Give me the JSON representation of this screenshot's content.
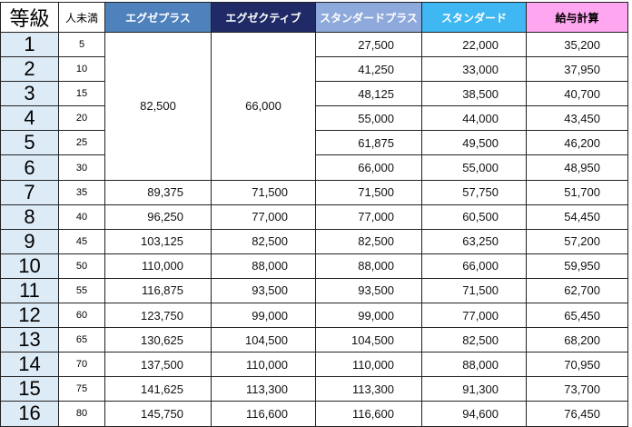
{
  "headers": {
    "rank": "等級",
    "min_people": "人未満",
    "egze_plus": "エグゼプラス",
    "egze_active": "エグゼクティブ",
    "standard_plus": "スタンダードプラス",
    "standard": "スタンダード",
    "salary": "給与計算"
  },
  "merged": {
    "egze_plus": "82,500",
    "egze_active": "66,000"
  },
  "rows": [
    {
      "rank": "1",
      "min": "5",
      "standard_plus": "27,500",
      "standard": "22,000",
      "salary": "35,200"
    },
    {
      "rank": "2",
      "min": "10",
      "standard_plus": "41,250",
      "standard": "33,000",
      "salary": "37,950"
    },
    {
      "rank": "3",
      "min": "15",
      "standard_plus": "48,125",
      "standard": "38,500",
      "salary": "40,700"
    },
    {
      "rank": "4",
      "min": "20",
      "standard_plus": "55,000",
      "standard": "44,000",
      "salary": "43,450"
    },
    {
      "rank": "5",
      "min": "25",
      "standard_plus": "61,875",
      "standard": "49,500",
      "salary": "46,200"
    },
    {
      "rank": "6",
      "min": "30",
      "standard_plus": "66,000",
      "standard": "55,000",
      "salary": "48,950"
    },
    {
      "rank": "7",
      "min": "35",
      "egze_plus": "89,375",
      "egze_active": "71,500",
      "standard_plus": "71,500",
      "standard": "57,750",
      "salary": "51,700"
    },
    {
      "rank": "8",
      "min": "40",
      "egze_plus": "96,250",
      "egze_active": "77,000",
      "standard_plus": "77,000",
      "standard": "60,500",
      "salary": "54,450"
    },
    {
      "rank": "9",
      "min": "45",
      "egze_plus": "103,125",
      "egze_active": "82,500",
      "standard_plus": "82,500",
      "standard": "63,250",
      "salary": "57,200"
    },
    {
      "rank": "10",
      "min": "50",
      "egze_plus": "110,000",
      "egze_active": "88,000",
      "standard_plus": "88,000",
      "standard": "66,000",
      "salary": "59,950"
    },
    {
      "rank": "11",
      "min": "55",
      "egze_plus": "116,875",
      "egze_active": "93,500",
      "standard_plus": "93,500",
      "standard": "71,500",
      "salary": "62,700"
    },
    {
      "rank": "12",
      "min": "60",
      "egze_plus": "123,750",
      "egze_active": "99,000",
      "standard_plus": "99,000",
      "standard": "77,000",
      "salary": "65,450"
    },
    {
      "rank": "13",
      "min": "65",
      "egze_plus": "130,625",
      "egze_active": "104,500",
      "standard_plus": "104,500",
      "standard": "82,500",
      "salary": "68,200"
    },
    {
      "rank": "14",
      "min": "70",
      "egze_plus": "137,500",
      "egze_active": "110,000",
      "standard_plus": "110,000",
      "standard": "88,000",
      "salary": "70,950"
    },
    {
      "rank": "15",
      "min": "75",
      "egze_plus": "141,625",
      "egze_active": "113,300",
      "standard_plus": "113,300",
      "standard": "91,300",
      "salary": "73,700"
    },
    {
      "rank": "16",
      "min": "80",
      "egze_plus": "145,750",
      "egze_active": "116,600",
      "standard_plus": "116,600",
      "standard": "94,600",
      "salary": "76,450"
    }
  ],
  "colors": {
    "egze_plus_header": "#4f81bd",
    "egze_active_header": "#1f2a67",
    "standard_plus_header": "#8ea9db",
    "standard_header": "#3fb7f2",
    "salary_header": "#ffa6f0",
    "rank_cell": "#ddebf7"
  }
}
